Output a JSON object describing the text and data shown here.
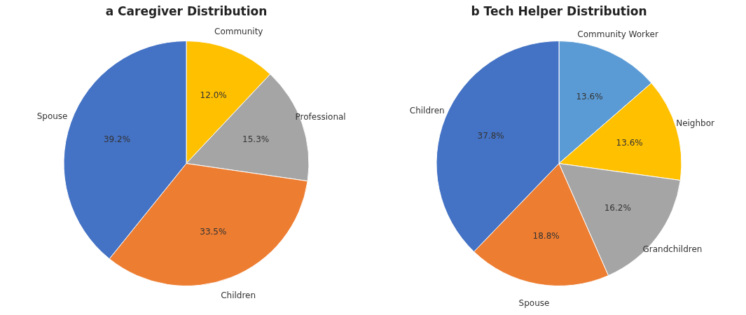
{
  "chart_data": [
    {
      "type": "pie",
      "title": "a  Caregiver Distribution",
      "categories": [
        "Community",
        "Professional",
        "Children",
        "Spouse"
      ],
      "values": [
        12.0,
        15.3,
        33.5,
        39.2
      ],
      "colors": [
        "#ffc000",
        "#a5a5a5",
        "#ed7d31",
        "#4472c4"
      ],
      "value_labels": [
        "12.0%",
        "15.3%",
        "33.5%",
        "39.2%"
      ]
    },
    {
      "type": "pie",
      "title": "b  Tech Helper Distribution",
      "categories": [
        "Community Worker",
        "Neighbor",
        "Grandchildren",
        "Spouse",
        "Children"
      ],
      "values": [
        13.6,
        13.6,
        16.2,
        18.8,
        37.8
      ],
      "colors": [
        "#5b9bd5",
        "#ffc000",
        "#a5a5a5",
        "#ed7d31",
        "#4472c4"
      ],
      "value_labels": [
        "13.6%",
        "13.6%",
        "16.2%",
        "18.8%",
        "37.8%"
      ]
    }
  ]
}
